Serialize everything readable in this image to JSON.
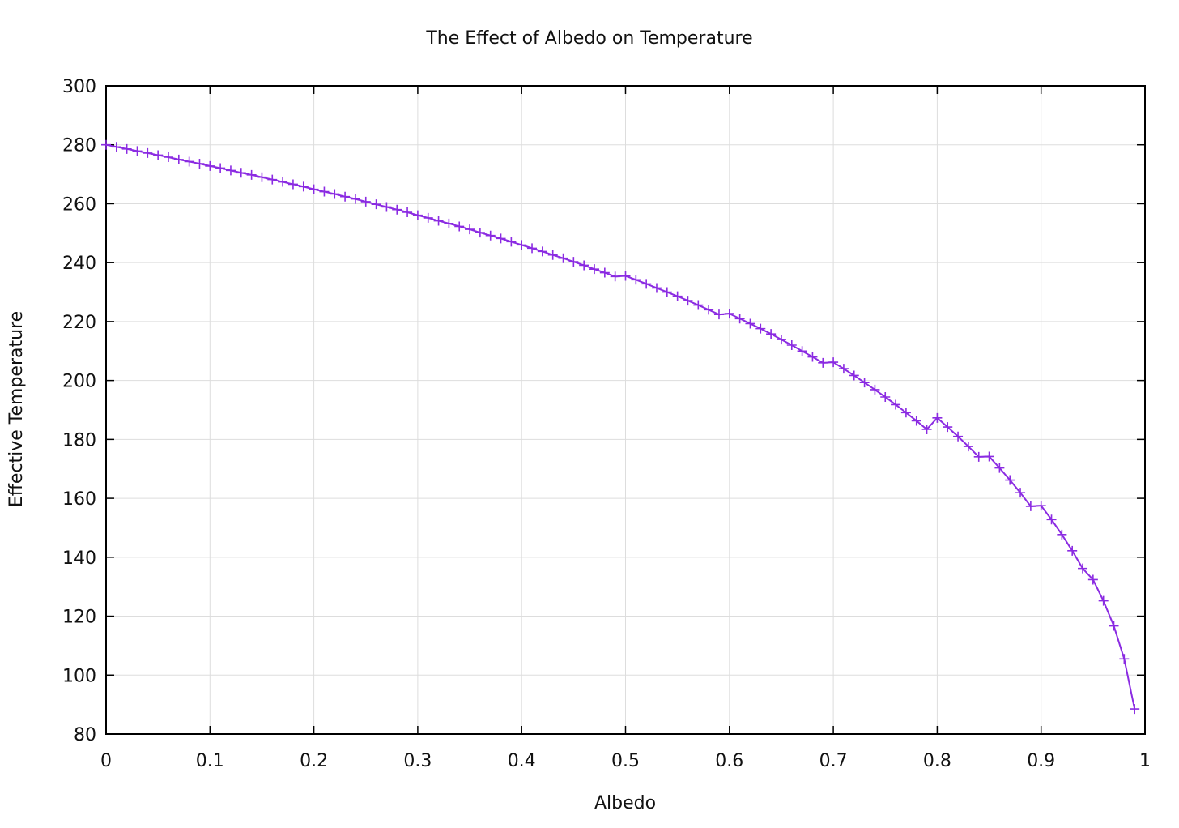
{
  "chart_data": {
    "type": "line",
    "title": "The Effect of Albedo on Temperature",
    "xlabel": "Albedo",
    "ylabel": "Effective Temperature",
    "xlim": [
      0,
      1
    ],
    "ylim": [
      80,
      300
    ],
    "x_ticks": [
      "0",
      "0.1",
      "0.2",
      "0.3",
      "0.4",
      "0.5",
      "0.6",
      "0.7",
      "0.8",
      "0.9",
      "1"
    ],
    "y_ticks": [
      "80",
      "100",
      "120",
      "140",
      "160",
      "180",
      "200",
      "220",
      "240",
      "260",
      "280",
      "300"
    ],
    "grid": true,
    "legend": "none",
    "series": [
      {
        "marker": "plus",
        "color": "#8b2be2",
        "x": [
          0.0,
          0.01,
          0.02,
          0.03,
          0.04,
          0.05,
          0.06,
          0.07,
          0.08,
          0.09,
          0.1,
          0.11,
          0.12,
          0.13,
          0.14,
          0.15,
          0.16,
          0.17,
          0.18,
          0.19,
          0.2,
          0.21,
          0.22,
          0.23,
          0.24,
          0.25,
          0.26,
          0.27,
          0.28,
          0.29,
          0.3,
          0.31,
          0.32,
          0.33,
          0.34,
          0.35,
          0.36,
          0.37,
          0.38,
          0.39,
          0.4,
          0.41,
          0.42,
          0.43,
          0.44,
          0.45,
          0.46,
          0.47,
          0.48,
          0.49,
          0.5,
          0.51,
          0.52,
          0.53,
          0.54,
          0.55,
          0.56,
          0.57,
          0.58,
          0.59,
          0.6,
          0.61,
          0.62,
          0.63,
          0.64,
          0.65,
          0.66,
          0.67,
          0.68,
          0.69,
          0.7,
          0.71,
          0.72,
          0.73,
          0.74,
          0.75,
          0.76,
          0.77,
          0.78,
          0.79,
          0.8,
          0.81,
          0.82,
          0.83,
          0.84,
          0.85,
          0.86,
          0.87,
          0.88,
          0.89,
          0.9,
          0.91,
          0.92,
          0.93,
          0.94,
          0.95,
          0.96,
          0.97,
          0.98,
          0.99
        ],
        "y": [
          280.0,
          279.3,
          278.6,
          277.9,
          277.2,
          276.5,
          275.8,
          275.0,
          274.3,
          273.6,
          272.8,
          272.1,
          271.3,
          270.5,
          269.8,
          269.0,
          268.2,
          267.4,
          266.6,
          265.8,
          264.9,
          264.1,
          263.3,
          262.4,
          261.6,
          260.7,
          259.8,
          258.9,
          258.0,
          257.1,
          256.1,
          255.2,
          254.2,
          253.3,
          252.3,
          251.3,
          250.2,
          249.2,
          248.2,
          247.1,
          246.0,
          244.9,
          243.8,
          242.6,
          241.5,
          240.3,
          239.1,
          237.8,
          236.6,
          235.3,
          235.5,
          234.2,
          232.8,
          231.4,
          230.0,
          228.6,
          227.1,
          225.6,
          224.0,
          222.4,
          222.7,
          221.0,
          219.3,
          217.6,
          215.8,
          213.9,
          212.0,
          210.0,
          208.0,
          206.0,
          206.2,
          204.0,
          201.7,
          199.3,
          196.9,
          194.4,
          191.8,
          189.1,
          186.3,
          183.4,
          187.3,
          184.2,
          181.0,
          177.6,
          174.1,
          174.2,
          170.3,
          166.2,
          161.9,
          157.3,
          157.5,
          152.8,
          147.7,
          142.2,
          136.2,
          132.4,
          125.2,
          116.7,
          105.5,
          88.5
        ]
      }
    ]
  }
}
